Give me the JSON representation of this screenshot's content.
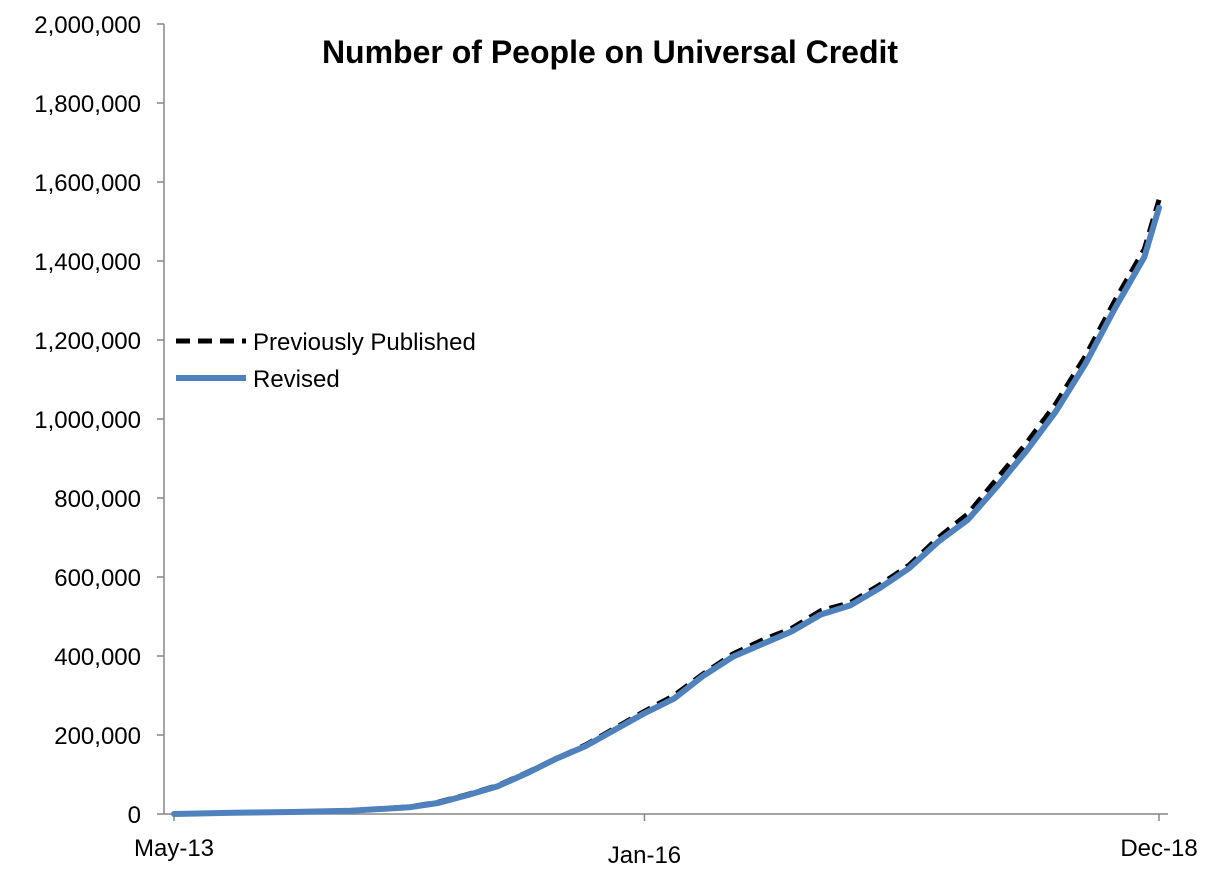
{
  "chart_data": {
    "type": "line",
    "title": "Number of People on Universal Credit",
    "xlabel": "",
    "ylabel": "",
    "ylim": [
      0,
      2000000
    ],
    "y_ticks": [
      0,
      200000,
      400000,
      600000,
      800000,
      1000000,
      1200000,
      1400000,
      1600000,
      1800000,
      2000000
    ],
    "y_tick_labels": [
      "0",
      "200,000",
      "400,000",
      "600,000",
      "800,000",
      "1,000,000",
      "1,200,000",
      "1,400,000",
      "1,600,000",
      "1,800,000",
      "2,000,000"
    ],
    "x_tick_labels": [
      "May-13",
      "Jan-16",
      "Dec-18"
    ],
    "x_tick_dates": [
      "2013-05",
      "2016-01",
      "2018-12"
    ],
    "grid": false,
    "legend_position": "left",
    "x": [
      "2013-05",
      "2013-09",
      "2014-01",
      "2014-05",
      "2014-09",
      "2014-11",
      "2015-01",
      "2015-03",
      "2015-05",
      "2015-07",
      "2015-09",
      "2016-01",
      "2016-03",
      "2016-05",
      "2016-07",
      "2016-09",
      "2016-11",
      "2017-01",
      "2017-03",
      "2017-05",
      "2017-07",
      "2017-09",
      "2017-11",
      "2018-01",
      "2018-03",
      "2018-05",
      "2018-07",
      "2018-09",
      "2018-11",
      "2018-12"
    ],
    "series": [
      {
        "name": "Previously Published",
        "color": "#000000",
        "style": "dashed",
        "values": [
          0,
          3000,
          5000,
          8000,
          18000,
          30000,
          50000,
          72000,
          105000,
          140000,
          175000,
          260000,
          300000,
          355000,
          405000,
          440000,
          470000,
          515000,
          535000,
          580000,
          630000,
          700000,
          760000,
          850000,
          940000,
          1040000,
          1160000,
          1300000,
          1430000,
          1555000
        ]
      },
      {
        "name": "Revised",
        "color": "#4f81bd",
        "style": "solid",
        "values": [
          0,
          3000,
          5000,
          8000,
          17000,
          28000,
          48000,
          70000,
          103000,
          140000,
          172000,
          255000,
          292000,
          350000,
          398000,
          430000,
          462000,
          505000,
          528000,
          572000,
          622000,
          690000,
          745000,
          830000,
          920000,
          1020000,
          1140000,
          1280000,
          1410000,
          1535000
        ]
      }
    ]
  }
}
